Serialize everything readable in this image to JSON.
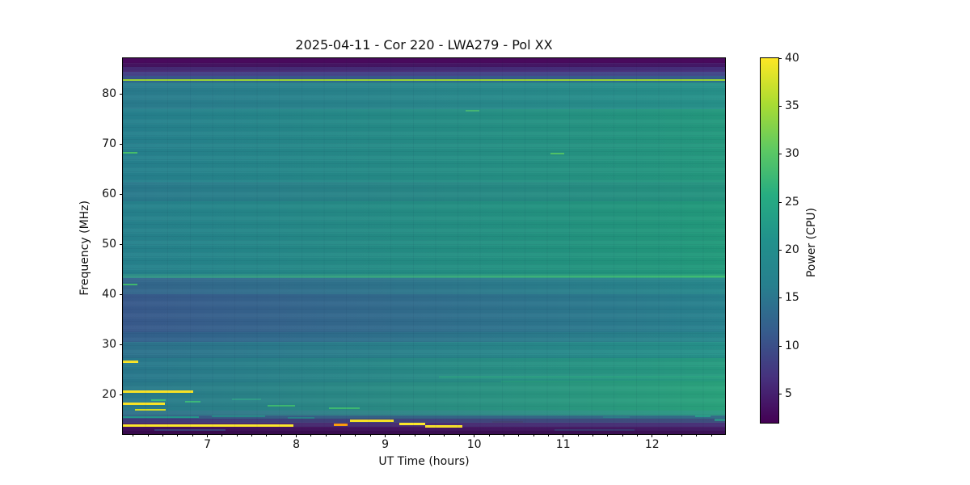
{
  "title": "2025-04-11 - Cor 220 - LWA279 - Pol XX",
  "axes": {
    "xlabel": "UT Time (hours)",
    "ylabel": "Frequency (MHz)",
    "x_ticks": [
      7,
      8,
      9,
      10,
      11,
      12
    ],
    "y_ticks": [
      20,
      30,
      40,
      50,
      60,
      70,
      80
    ]
  },
  "colorbar": {
    "label": "Power (CPU)",
    "ticks": [
      5,
      10,
      15,
      20,
      25,
      30,
      35,
      40
    ],
    "vmin": 2,
    "vmax": 40,
    "colormap": "viridis",
    "stops": [
      [
        0.0,
        "#440154"
      ],
      [
        0.125,
        "#46327e"
      ],
      [
        0.25,
        "#365c8d"
      ],
      [
        0.375,
        "#277f8e"
      ],
      [
        0.5,
        "#21918c"
      ],
      [
        0.625,
        "#27ad81"
      ],
      [
        0.75,
        "#5ec962"
      ],
      [
        0.875,
        "#aadc32"
      ],
      [
        1.0,
        "#fde725"
      ]
    ]
  },
  "chart_data": {
    "type": "heatmap",
    "title": "2025-04-11 - Cor 220 - LWA279 - Pol XX",
    "xlabel": "UT Time (hours)",
    "ylabel": "Frequency (MHz)",
    "x_range": [
      6.05,
      12.82
    ],
    "y_range": [
      12.1,
      87.1
    ],
    "x_minor_step": 0.166667,
    "bands": [
      [
        87.1,
        86.2,
        "#450459",
        "#450459"
      ],
      [
        86.2,
        85.3,
        "#461360",
        "#451968"
      ],
      [
        85.3,
        84.4,
        "#472a74",
        "#472f7c"
      ],
      [
        84.4,
        83.5,
        "#443f86",
        "#414789"
      ],
      [
        83.5,
        82.8,
        "#3a578c",
        "#36618d"
      ],
      [
        82.8,
        82.3,
        "#316a8e",
        "#2d758e"
      ],
      [
        82.3,
        77.0,
        "#2a7d8e",
        "#27938a"
      ],
      [
        77.0,
        62.5,
        "#26818e",
        "#249a7e"
      ],
      [
        62.5,
        58.5,
        "#2a7b8d",
        "#25957f"
      ],
      [
        58.5,
        44.0,
        "#26828d",
        "#229b7b"
      ],
      [
        44.0,
        43.2,
        "#2f8f8b",
        "#2da47e"
      ],
      [
        43.2,
        40.0,
        "#34678d",
        "#27898c"
      ],
      [
        40.0,
        32.5,
        "#395a8c",
        "#28838e"
      ],
      [
        32.5,
        30.5,
        "#33618d",
        "#27898c"
      ],
      [
        30.5,
        27.2,
        "#2d738d",
        "#26938a"
      ],
      [
        27.2,
        22.5,
        "#29798d",
        "#279d80"
      ],
      [
        22.5,
        16.8,
        "#2a7b8c",
        "#2aa47c"
      ],
      [
        16.8,
        15.8,
        "#30728b",
        "#2b9a82"
      ],
      [
        15.8,
        15.1,
        "#3a5a86",
        "#356f8a"
      ],
      [
        15.1,
        14.3,
        "#433a79",
        "#3f5180"
      ],
      [
        14.3,
        13.5,
        "#46256c",
        "#452e75"
      ],
      [
        13.5,
        12.8,
        "#440e59",
        "#451d66"
      ],
      [
        12.8,
        12.1,
        "#390a4e",
        "#3d1157"
      ]
    ],
    "rfi_lines": [
      {
        "f": 82.7,
        "t0": 6.05,
        "t1": 12.82,
        "c": "#9edb35",
        "h": 2
      },
      {
        "f": 76.6,
        "t0": 9.9,
        "t1": 10.06,
        "c": "#4fc46a",
        "h": 2,
        "op": 0.7
      },
      {
        "f": 68.2,
        "t0": 6.05,
        "t1": 6.21,
        "c": "#48c16c",
        "h": 2
      },
      {
        "f": 68.0,
        "t0": 10.86,
        "t1": 11.01,
        "c": "#52c568",
        "h": 2
      },
      {
        "f": 43.6,
        "t0": 6.05,
        "t1": 12.82,
        "c": "#35978a",
        "c2": "#3ec471",
        "h": 2
      },
      {
        "f": 41.9,
        "t0": 6.05,
        "t1": 6.21,
        "c": "#42bf70",
        "h": 2
      },
      {
        "f": 26.5,
        "t0": 6.05,
        "t1": 6.22,
        "c": "#fde725",
        "h": 3
      },
      {
        "f": 20.5,
        "t0": 6.05,
        "t1": 6.84,
        "c": "#fde725",
        "h": 3
      },
      {
        "f": 18.9,
        "t0": 6.37,
        "t1": 6.53,
        "c": "#35b87a",
        "h": 2
      },
      {
        "f": 18.1,
        "t0": 6.05,
        "t1": 6.52,
        "c": "#fde725",
        "h": 3
      },
      {
        "f": 16.9,
        "t0": 6.19,
        "t1": 6.53,
        "c": "#d8e021",
        "h": 2
      },
      {
        "f": 18.6,
        "t0": 6.75,
        "t1": 6.92,
        "c": "#38b878",
        "h": 2
      },
      {
        "f": 19.1,
        "t0": 7.28,
        "t1": 7.6,
        "c": "#2da486",
        "h": 2,
        "op": 0.7
      },
      {
        "f": 17.8,
        "t0": 7.68,
        "t1": 7.99,
        "c": "#3fbc73",
        "h": 2
      },
      {
        "f": 17.3,
        "t0": 8.37,
        "t1": 8.71,
        "c": "#3fbc73",
        "h": 2
      },
      {
        "f": 15.5,
        "t0": 6.05,
        "t1": 6.9,
        "c": "#25998c",
        "h": 2
      },
      {
        "f": 15.6,
        "t0": 7.05,
        "t1": 7.65,
        "c": "#27938c",
        "h": 2,
        "op": 0.8
      },
      {
        "f": 15.4,
        "t0": 7.9,
        "t1": 8.2,
        "c": "#27938c",
        "h": 2,
        "op": 0.7
      },
      {
        "f": 15.5,
        "t0": 11.45,
        "t1": 11.75,
        "c": "#2b8a8a",
        "h": 2,
        "op": 0.6
      },
      {
        "f": 15.6,
        "t0": 12.48,
        "t1": 12.66,
        "c": "#2a9d8c",
        "h": 2
      },
      {
        "f": 13.8,
        "t0": 6.05,
        "t1": 7.97,
        "c": "#fde725",
        "h": 3
      },
      {
        "f": 13.9,
        "t0": 8.42,
        "t1": 8.58,
        "c": "#fb9b06",
        "h": 3
      },
      {
        "f": 14.7,
        "t0": 8.6,
        "t1": 9.09,
        "c": "#fde725",
        "h": 3
      },
      {
        "f": 14.1,
        "t0": 9.16,
        "t1": 9.45,
        "c": "#fde725",
        "h": 3
      },
      {
        "f": 13.6,
        "t0": 9.45,
        "t1": 9.87,
        "c": "#fde725",
        "h": 3
      },
      {
        "f": 12.9,
        "t0": 6.4,
        "t1": 7.2,
        "c": "#3f4e85",
        "h": 2,
        "op": 0.8
      },
      {
        "f": 12.9,
        "t0": 10.9,
        "t1": 11.8,
        "c": "#3c4579",
        "h": 2,
        "op": 0.7
      },
      {
        "f": 14.5,
        "t0": 10.2,
        "t1": 10.55,
        "c": "#45436f",
        "h": 2,
        "op": 0.7
      },
      {
        "f": 15.0,
        "t0": 12.7,
        "t1": 12.82,
        "c": "#2e8f88",
        "h": 3
      },
      {
        "f": 23.5,
        "t0": 9.6,
        "t1": 12.82,
        "c": "#29a87d",
        "h": 3,
        "op": 0.45
      },
      {
        "f": 22.6,
        "t0": 10.3,
        "t1": 12.82,
        "c": "#2bae7a",
        "h": 2,
        "op": 0.45
      }
    ]
  }
}
